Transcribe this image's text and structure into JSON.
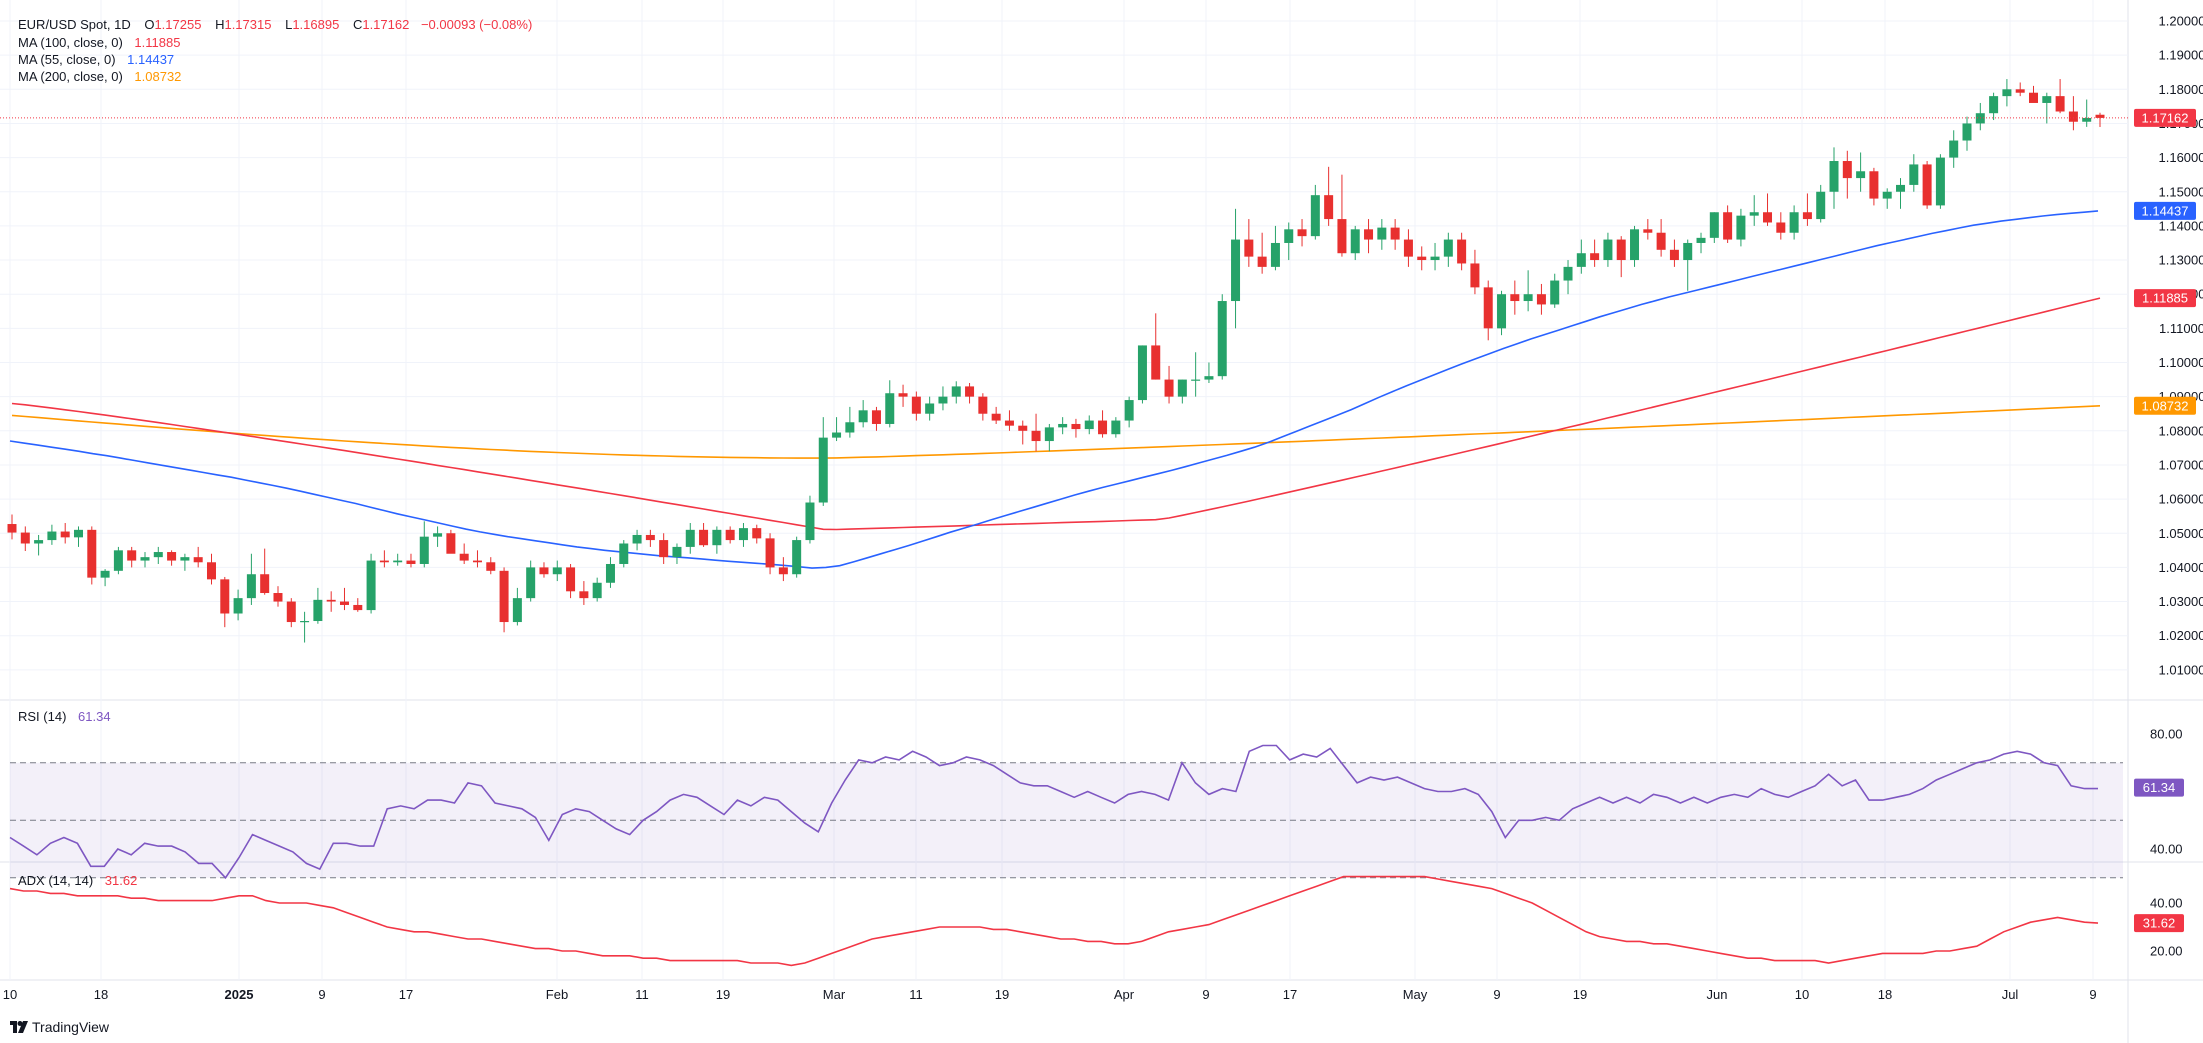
{
  "symbol": {
    "name": "EUR/USD Spot, 1D",
    "o_label": "O",
    "o": "1.17255",
    "h_label": "H",
    "h": "1.17315",
    "l_label": "L",
    "l": "1.16895",
    "c_label": "C",
    "c": "1.17162",
    "change": "−0.00093 (−0.08%)"
  },
  "indicators": {
    "ma100": {
      "label": "MA (100, close, 0)",
      "value": "1.11885",
      "color": "#f23645"
    },
    "ma55": {
      "label": "MA (55, close, 0)",
      "value": "1.14437",
      "color": "#2962ff"
    },
    "ma200": {
      "label": "MA (200, close, 0)",
      "value": "1.08732",
      "color": "#ff9800"
    },
    "rsi": {
      "label": "RSI (14)",
      "value": "61.34",
      "color": "#7e57c2"
    },
    "adx": {
      "label": "ADX (14, 14)",
      "value": "31.62",
      "color": "#f23645"
    }
  },
  "price_axis": [
    "1.20000",
    "1.19000",
    "1.18000",
    "1.17000",
    "1.16000",
    "1.15000",
    "1.14000",
    "1.13000",
    "1.12000",
    "1.11000",
    "1.10000",
    "1.09000",
    "1.08000",
    "1.07000",
    "1.06000",
    "1.05000",
    "1.04000",
    "1.03000",
    "1.02000",
    "1.01000"
  ],
  "price_tags": [
    {
      "text": "1.17162",
      "color": "#f23645"
    },
    {
      "text": "1.14437",
      "color": "#2962ff"
    },
    {
      "text": "1.11885",
      "color": "#f23645"
    },
    {
      "text": "1.08732",
      "color": "#ff9800"
    }
  ],
  "rsi_axis": [
    "80.00",
    "40.00"
  ],
  "rsi_tag": "61.34",
  "adx_axis": [
    "40.00",
    "20.00"
  ],
  "adx_tag": "31.62",
  "time_axis": [
    "10",
    "18",
    "2025",
    "9",
    "17",
    "Feb",
    "11",
    "19",
    "Mar",
    "11",
    "19",
    "Apr",
    "9",
    "17",
    "May",
    "9",
    "19",
    "Jun",
    "10",
    "18",
    "Jul",
    "9"
  ],
  "branding": "TradingView",
  "chart_data": {
    "type": "candlestick",
    "title": "EUR/USD Spot, 1D",
    "ylim": [
      1.005,
      1.2025
    ],
    "candles": [
      [
        1.0527,
        1.0555,
        1.0482,
        1.0502
      ],
      [
        1.0502,
        1.052,
        1.0448,
        1.047
      ],
      [
        1.047,
        1.0495,
        1.0435,
        1.048
      ],
      [
        1.048,
        1.0525,
        1.0466,
        1.0505
      ],
      [
        1.0505,
        1.053,
        1.047,
        1.0488
      ],
      [
        1.0488,
        1.052,
        1.046,
        1.051
      ],
      [
        1.051,
        1.052,
        1.035,
        1.037
      ],
      [
        1.037,
        1.0395,
        1.0345,
        1.039
      ],
      [
        1.039,
        1.046,
        1.038,
        1.045
      ],
      [
        1.045,
        1.046,
        1.04,
        1.042
      ],
      [
        1.042,
        1.0445,
        1.04,
        1.043
      ],
      [
        1.043,
        1.046,
        1.041,
        1.0445
      ],
      [
        1.0445,
        1.045,
        1.0405,
        1.042
      ],
      [
        1.042,
        1.044,
        1.039,
        1.043
      ],
      [
        1.043,
        1.046,
        1.04,
        1.0415
      ],
      [
        1.0415,
        1.044,
        1.035,
        1.0365
      ],
      [
        1.0365,
        1.0372,
        1.0225,
        1.0265
      ],
      [
        1.0265,
        1.0335,
        1.0245,
        1.031
      ],
      [
        1.031,
        1.044,
        1.029,
        1.038
      ],
      [
        1.038,
        1.0455,
        1.032,
        1.0325
      ],
      [
        1.0325,
        1.0345,
        1.0285,
        1.03
      ],
      [
        1.03,
        1.031,
        1.0225,
        1.024
      ],
      [
        1.024,
        1.027,
        1.018,
        1.0243
      ],
      [
        1.0243,
        1.034,
        1.0235,
        1.0305
      ],
      [
        1.0305,
        1.033,
        1.027,
        1.03
      ],
      [
        1.03,
        1.034,
        1.0275,
        1.029
      ],
      [
        1.029,
        1.031,
        1.027,
        1.0275
      ],
      [
        1.0275,
        1.044,
        1.0265,
        1.042
      ],
      [
        1.042,
        1.045,
        1.04,
        1.0415
      ],
      [
        1.0415,
        1.044,
        1.0405,
        1.042
      ],
      [
        1.042,
        1.044,
        1.04,
        1.041
      ],
      [
        1.041,
        1.0535,
        1.04,
        1.049
      ],
      [
        1.049,
        1.052,
        1.046,
        1.05
      ],
      [
        1.05,
        1.051,
        1.045,
        1.044
      ],
      [
        1.044,
        1.047,
        1.041,
        1.042
      ],
      [
        1.042,
        1.045,
        1.04,
        1.0415
      ],
      [
        1.0415,
        1.043,
        1.038,
        1.039
      ],
      [
        1.039,
        1.04,
        1.021,
        1.024
      ],
      [
        1.024,
        1.034,
        1.023,
        1.031
      ],
      [
        1.031,
        1.042,
        1.03,
        1.04
      ],
      [
        1.04,
        1.0415,
        1.037,
        1.038
      ],
      [
        1.038,
        1.042,
        1.036,
        1.04
      ],
      [
        1.04,
        1.041,
        1.031,
        1.033
      ],
      [
        1.033,
        1.036,
        1.029,
        1.031
      ],
      [
        1.031,
        1.037,
        1.03,
        1.0355
      ],
      [
        1.0355,
        1.043,
        1.034,
        1.041
      ],
      [
        1.041,
        1.048,
        1.04,
        1.047
      ],
      [
        1.047,
        1.051,
        1.045,
        1.0495
      ],
      [
        1.0495,
        1.051,
        1.046,
        1.048
      ],
      [
        1.048,
        1.05,
        1.041,
        1.043
      ],
      [
        1.043,
        1.047,
        1.041,
        1.046
      ],
      [
        1.046,
        1.053,
        1.044,
        1.051
      ],
      [
        1.051,
        1.053,
        1.046,
        1.0465
      ],
      [
        1.0465,
        1.052,
        1.044,
        1.051
      ],
      [
        1.051,
        1.052,
        1.047,
        1.048
      ],
      [
        1.048,
        1.053,
        1.046,
        1.0515
      ],
      [
        1.0515,
        1.0525,
        1.047,
        1.0485
      ],
      [
        1.0485,
        1.05,
        1.038,
        1.04
      ],
      [
        1.04,
        1.043,
        1.036,
        1.038
      ],
      [
        1.038,
        1.049,
        1.037,
        1.048
      ],
      [
        1.048,
        1.061,
        1.047,
        1.059
      ],
      [
        1.059,
        1.084,
        1.058,
        1.078
      ],
      [
        1.078,
        1.084,
        1.077,
        1.0795
      ],
      [
        1.0795,
        1.087,
        1.078,
        1.0825
      ],
      [
        1.0825,
        1.089,
        1.081,
        1.086
      ],
      [
        1.086,
        1.087,
        1.08,
        1.082
      ],
      [
        1.082,
        1.0948,
        1.081,
        1.091
      ],
      [
        1.091,
        1.0935,
        1.087,
        1.09
      ],
      [
        1.09,
        1.0915,
        1.083,
        1.085
      ],
      [
        1.085,
        1.09,
        1.083,
        1.088
      ],
      [
        1.088,
        1.093,
        1.086,
        1.09
      ],
      [
        1.09,
        1.0945,
        1.088,
        1.093
      ],
      [
        1.093,
        1.094,
        1.088,
        1.09
      ],
      [
        1.09,
        1.091,
        1.083,
        1.085
      ],
      [
        1.085,
        1.087,
        1.082,
        1.083
      ],
      [
        1.083,
        1.086,
        1.08,
        1.0815
      ],
      [
        1.0815,
        1.083,
        1.076,
        1.08
      ],
      [
        1.08,
        1.085,
        1.074,
        1.077
      ],
      [
        1.077,
        1.082,
        1.074,
        1.081
      ],
      [
        1.081,
        1.084,
        1.079,
        1.082
      ],
      [
        1.082,
        1.0835,
        1.078,
        1.0805
      ],
      [
        1.0805,
        1.0845,
        1.079,
        1.083
      ],
      [
        1.083,
        1.086,
        1.078,
        1.079
      ],
      [
        1.079,
        1.084,
        1.078,
        1.083
      ],
      [
        1.083,
        1.09,
        1.081,
        1.089
      ],
      [
        1.089,
        1.105,
        1.088,
        1.105
      ],
      [
        1.105,
        1.1144,
        1.095,
        1.095
      ],
      [
        1.095,
        1.099,
        1.088,
        1.09
      ],
      [
        1.09,
        1.095,
        1.088,
        1.095
      ],
      [
        1.095,
        1.103,
        1.09,
        1.095
      ],
      [
        1.095,
        1.1,
        1.094,
        1.096
      ],
      [
        1.096,
        1.12,
        1.095,
        1.118
      ],
      [
        1.118,
        1.145,
        1.11,
        1.136
      ],
      [
        1.136,
        1.142,
        1.128,
        1.131
      ],
      [
        1.131,
        1.138,
        1.126,
        1.128
      ],
      [
        1.128,
        1.14,
        1.127,
        1.135
      ],
      [
        1.135,
        1.141,
        1.13,
        1.139
      ],
      [
        1.139,
        1.142,
        1.134,
        1.137
      ],
      [
        1.137,
        1.152,
        1.136,
        1.149
      ],
      [
        1.149,
        1.1573,
        1.14,
        1.142
      ],
      [
        1.142,
        1.155,
        1.131,
        1.132
      ],
      [
        1.132,
        1.14,
        1.13,
        1.139
      ],
      [
        1.139,
        1.142,
        1.132,
        1.136
      ],
      [
        1.136,
        1.142,
        1.133,
        1.1395
      ],
      [
        1.1395,
        1.142,
        1.133,
        1.136
      ],
      [
        1.136,
        1.139,
        1.128,
        1.131
      ],
      [
        1.131,
        1.134,
        1.127,
        1.13
      ],
      [
        1.13,
        1.135,
        1.127,
        1.131
      ],
      [
        1.131,
        1.138,
        1.128,
        1.136
      ],
      [
        1.136,
        1.138,
        1.127,
        1.129
      ],
      [
        1.129,
        1.133,
        1.12,
        1.122
      ],
      [
        1.122,
        1.124,
        1.1065,
        1.11
      ],
      [
        1.11,
        1.121,
        1.108,
        1.12
      ],
      [
        1.12,
        1.124,
        1.114,
        1.118
      ],
      [
        1.118,
        1.127,
        1.115,
        1.12
      ],
      [
        1.12,
        1.123,
        1.114,
        1.117
      ],
      [
        1.117,
        1.126,
        1.116,
        1.124
      ],
      [
        1.124,
        1.13,
        1.12,
        1.128
      ],
      [
        1.128,
        1.136,
        1.126,
        1.132
      ],
      [
        1.132,
        1.136,
        1.128,
        1.13
      ],
      [
        1.13,
        1.138,
        1.128,
        1.136
      ],
      [
        1.136,
        1.137,
        1.125,
        1.13
      ],
      [
        1.13,
        1.14,
        1.128,
        1.139
      ],
      [
        1.139,
        1.142,
        1.136,
        1.138
      ],
      [
        1.138,
        1.142,
        1.131,
        1.133
      ],
      [
        1.133,
        1.136,
        1.128,
        1.13
      ],
      [
        1.13,
        1.136,
        1.121,
        1.135
      ],
      [
        1.135,
        1.138,
        1.132,
        1.1365
      ],
      [
        1.1365,
        1.144,
        1.135,
        1.144
      ],
      [
        1.144,
        1.146,
        1.135,
        1.136
      ],
      [
        1.136,
        1.145,
        1.134,
        1.143
      ],
      [
        1.143,
        1.149,
        1.14,
        1.144
      ],
      [
        1.144,
        1.1495,
        1.14,
        1.141
      ],
      [
        1.141,
        1.144,
        1.136,
        1.138
      ],
      [
        1.138,
        1.146,
        1.136,
        1.144
      ],
      [
        1.144,
        1.1495,
        1.14,
        1.142
      ],
      [
        1.142,
        1.152,
        1.141,
        1.15
      ],
      [
        1.15,
        1.163,
        1.145,
        1.159
      ],
      [
        1.159,
        1.162,
        1.148,
        1.154
      ],
      [
        1.154,
        1.1615,
        1.15,
        1.156
      ],
      [
        1.156,
        1.157,
        1.146,
        1.148
      ],
      [
        1.148,
        1.151,
        1.145,
        1.15
      ],
      [
        1.15,
        1.154,
        1.145,
        1.152
      ],
      [
        1.152,
        1.161,
        1.15,
        1.158
      ],
      [
        1.158,
        1.159,
        1.145,
        1.146
      ],
      [
        1.146,
        1.161,
        1.145,
        1.16
      ],
      [
        1.16,
        1.168,
        1.157,
        1.165
      ],
      [
        1.165,
        1.172,
        1.162,
        1.17
      ],
      [
        1.17,
        1.176,
        1.168,
        1.173
      ],
      [
        1.173,
        1.179,
        1.171,
        1.178
      ],
      [
        1.178,
        1.183,
        1.175,
        1.18
      ],
      [
        1.18,
        1.182,
        1.178,
        1.179
      ],
      [
        1.179,
        1.181,
        1.177,
        1.176
      ],
      [
        1.176,
        1.179,
        1.17,
        1.178
      ],
      [
        1.178,
        1.183,
        1.173,
        1.1735
      ],
      [
        1.1735,
        1.178,
        1.168,
        1.1705
      ],
      [
        1.1705,
        1.177,
        1.169,
        1.1716
      ],
      [
        1.17255,
        1.17315,
        1.16895,
        1.17162
      ]
    ],
    "ma55": [
      1.077,
      1.0764,
      1.0758,
      1.0752,
      1.0746,
      1.074,
      1.0733,
      1.0727,
      1.072,
      1.0713,
      1.0706,
      1.0699,
      1.0692,
      1.0685,
      1.0678,
      1.0671,
      1.0664,
      1.0656,
      1.0648,
      1.064,
      1.0632,
      1.0623,
      1.0614,
      1.0605,
      1.0596,
      1.0587,
      1.0577,
      1.0567,
      1.0557,
      1.0548,
      1.0539,
      1.053,
      1.0521,
      1.0512,
      1.0504,
      1.0497,
      1.049,
      1.0484,
      1.0478,
      1.0472,
      1.0466,
      1.046,
      1.0455,
      1.045,
      1.0446,
      1.0442,
      1.0438,
      1.0434,
      1.0431,
      1.0428,
      1.0425,
      1.0421,
      1.0418,
      1.0415,
      1.0412,
      1.0409,
      1.0406,
      1.0402,
      1.0398,
      1.04,
      1.0405,
      1.0416,
      1.0428,
      1.044,
      1.0452,
      1.0464,
      1.0477,
      1.049,
      1.0503,
      1.0515,
      1.0527,
      1.054,
      1.0552,
      1.0564,
      1.0576,
      1.0588,
      1.06,
      1.0612,
      1.0623,
      1.0634,
      1.0644,
      1.0654,
      1.0664,
      1.0674,
      1.0684,
      1.0695,
      1.0706,
      1.0717,
      1.0728,
      1.074,
      1.0752,
      1.0766,
      1.0782,
      1.0798,
      1.0814,
      1.083,
      1.0846,
      1.0862,
      1.088,
      1.0898,
      1.0915,
      1.0932,
      1.0948,
      1.0964,
      1.098,
      1.0996,
      1.1011,
      1.1026,
      1.1041,
      1.1055,
      1.1069,
      1.1082,
      1.1095,
      1.1108,
      1.1121,
      1.1134,
      1.1146,
      1.1158,
      1.117,
      1.1181,
      1.1192,
      1.1202,
      1.1212,
      1.1222,
      1.1232,
      1.1242,
      1.1252,
      1.1262,
      1.1272,
      1.1282,
      1.1292,
      1.1302,
      1.1312,
      1.1322,
      1.1332,
      1.1342,
      1.1351,
      1.136,
      1.1369,
      1.1378,
      1.1386,
      1.1394,
      1.1402,
      1.1408,
      1.1414,
      1.1419,
      1.1424,
      1.1429,
      1.1433,
      1.1437,
      1.144,
      1.1444
    ],
    "ma100_start": 1.088,
    "ma100_end": 1.11885,
    "ma200_start": 1.0845,
    "ma200_end": 1.08732,
    "rsi": [
      44,
      41,
      38,
      42,
      44,
      42,
      34,
      34,
      40,
      38,
      42,
      41,
      41,
      39,
      35,
      35,
      30,
      37,
      45,
      43,
      41,
      39,
      35,
      33,
      42,
      42,
      41,
      41,
      54,
      55,
      54,
      57,
      57,
      56,
      63,
      62,
      56,
      55,
      54,
      51,
      43,
      52,
      54,
      53,
      50,
      47,
      45,
      50,
      53,
      57,
      59,
      58,
      55,
      52,
      57,
      55,
      58,
      57,
      53,
      49,
      46,
      56,
      64,
      71,
      70,
      72,
      71,
      74,
      72,
      69,
      70,
      72,
      71,
      69,
      66,
      63,
      62,
      62,
      60,
      58,
      60,
      58,
      56,
      59,
      60,
      59,
      57,
      70,
      63,
      59,
      61,
      60,
      74,
      76,
      76,
      71,
      73,
      72,
      75,
      69,
      63,
      65,
      64,
      65,
      63,
      61,
      60,
      60,
      61,
      59,
      53,
      44,
      50,
      50,
      51,
      50,
      54,
      56,
      58,
      56,
      58,
      56,
      59,
      58,
      56,
      58,
      56,
      58,
      59,
      58,
      61,
      59,
      58,
      60,
      62,
      66,
      62,
      64,
      57,
      57,
      58,
      59,
      61,
      64,
      66,
      68,
      70,
      71,
      73,
      74,
      73,
      70,
      69,
      62,
      61,
      61
    ],
    "rsi_ylim": [
      25,
      85
    ],
    "adx": [
      46,
      45,
      45,
      44,
      44,
      43,
      43,
      43,
      43,
      42,
      42,
      41,
      41,
      41,
      41,
      41,
      42,
      43,
      43,
      41,
      40,
      40,
      40,
      39,
      38,
      36,
      34,
      32,
      30,
      29,
      28,
      28,
      27,
      26,
      25,
      25,
      24,
      23,
      22,
      21,
      21,
      20,
      20,
      19,
      18,
      18,
      18,
      17,
      17,
      16,
      16,
      16,
      16,
      16,
      16,
      15,
      15,
      15,
      14,
      15,
      17,
      19,
      21,
      23,
      25,
      26,
      27,
      28,
      29,
      30,
      30,
      30,
      30,
      29,
      29,
      28,
      27,
      26,
      25,
      25,
      24,
      24,
      23,
      23,
      24,
      26,
      28,
      29,
      30,
      31,
      33,
      35,
      37,
      39,
      41,
      43,
      45,
      47,
      49,
      51,
      51,
      51,
      51,
      51,
      51,
      51,
      50,
      49,
      48,
      47,
      46,
      44,
      42,
      40,
      37,
      34,
      31,
      28,
      26,
      25,
      24,
      24,
      23,
      23,
      22,
      21,
      20,
      19,
      18,
      17,
      17,
      16,
      16,
      16,
      16,
      15,
      16,
      17,
      18,
      19,
      19,
      19,
      19,
      20,
      20,
      21,
      22,
      25,
      28,
      30,
      32,
      33,
      34,
      33,
      32,
      31.62
    ],
    "adx_ylim": [
      10,
      55
    ]
  }
}
